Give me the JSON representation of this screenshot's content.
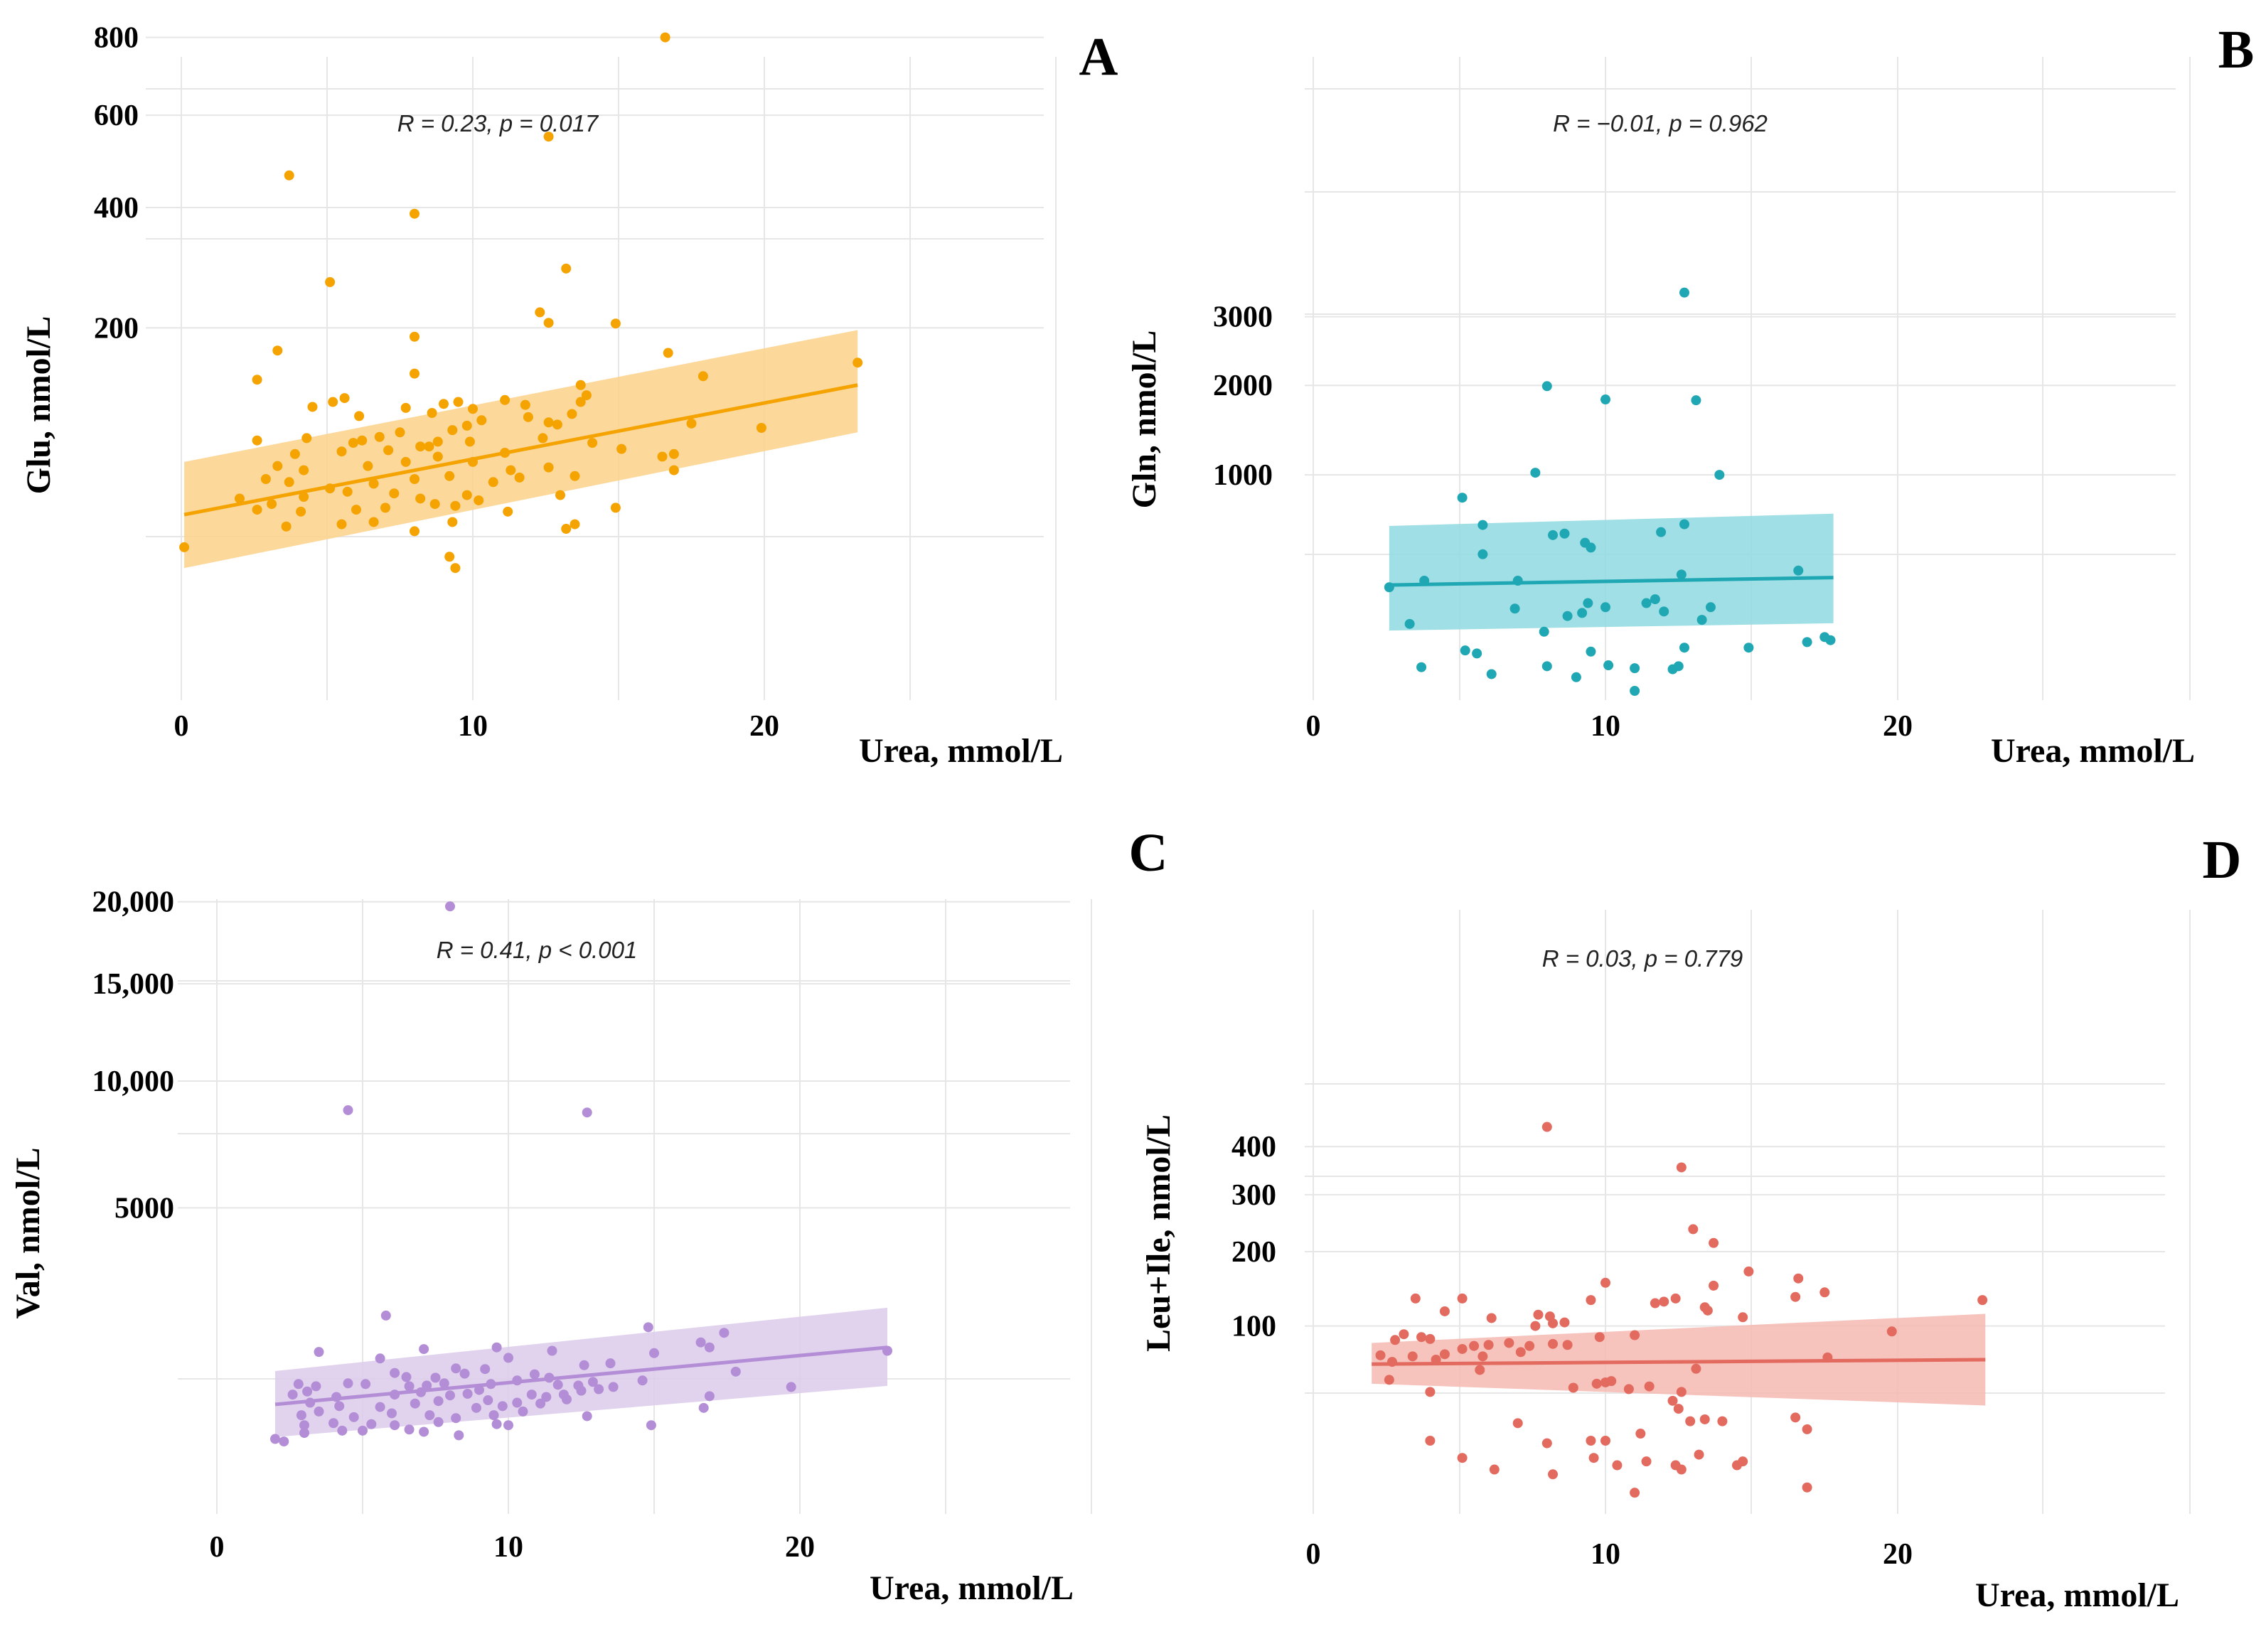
{
  "chart_data": [
    {
      "type": "scatter",
      "panel": "A",
      "xlabel": "Urea, mmol/L",
      "ylabel": "Glu, nmol/L",
      "xlim": [
        0,
        30
      ],
      "xticks": [
        0,
        10,
        20
      ],
      "yscale": "sqrt",
      "yticks": [
        200,
        400,
        600,
        800
      ],
      "ytick_labels": [
        "200",
        "400",
        "600",
        "800"
      ],
      "annotation": {
        "r": "R = 0.23, ",
        "p": "p = 0.017"
      },
      "color": "#f5a300",
      "band_color": "#fbd189",
      "fit": {
        "x0": 0.1,
        "y0": 25.5,
        "x1": 23.2,
        "y1": 129,
        "ci0": [
          6.0,
          58
        ],
        "ci1": [
          82,
          197
        ]
      },
      "points": [
        [
          16.6,
          800
        ],
        [
          12.6,
          550
        ],
        [
          3.7,
          465
        ],
        [
          8.0,
          388
        ],
        [
          5.1,
          268
        ],
        [
          13.2,
          290
        ],
        [
          12.3,
          222
        ],
        [
          12.6,
          207
        ],
        [
          14.9,
          206
        ],
        [
          8.0,
          188
        ],
        [
          3.3,
          170
        ],
        [
          16.7,
          167
        ],
        [
          23.2,
          155
        ],
        [
          2.6,
          135
        ],
        [
          17.9,
          139
        ],
        [
          8.0,
          142
        ],
        [
          13.7,
          129
        ],
        [
          13.9,
          118
        ],
        [
          4.5,
          106
        ],
        [
          5.2,
          111
        ],
        [
          5.6,
          115
        ],
        [
          6.1,
          97
        ],
        [
          7.7,
          105
        ],
        [
          8.6,
          100
        ],
        [
          9.0,
          109
        ],
        [
          9.5,
          111
        ],
        [
          10.0,
          104
        ],
        [
          11.1,
          113
        ],
        [
          11.8,
          108
        ],
        [
          13.4,
          99
        ],
        [
          13.7,
          111
        ],
        [
          12.6,
          91
        ],
        [
          17.5,
          90
        ],
        [
          19.9,
          86
        ],
        [
          4.3,
          77
        ],
        [
          5.9,
          73
        ],
        [
          6.2,
          75
        ],
        [
          6.8,
          78
        ],
        [
          7.5,
          82
        ],
        [
          8.2,
          70
        ],
        [
          8.8,
          74
        ],
        [
          9.3,
          84
        ],
        [
          9.8,
          88
        ],
        [
          10.3,
          93
        ],
        [
          11.9,
          96
        ],
        [
          12.9,
          89
        ],
        [
          15.1,
          68
        ],
        [
          16.9,
          64
        ],
        [
          16.5,
          62
        ],
        [
          2.6,
          75
        ],
        [
          3.9,
          64
        ],
        [
          5.5,
          66
        ],
        [
          7.1,
          67
        ],
        [
          8.5,
          70
        ],
        [
          9.9,
          74
        ],
        [
          11.1,
          65
        ],
        [
          12.4,
          77
        ],
        [
          14.1,
          73
        ],
        [
          3.3,
          55
        ],
        [
          4.2,
          52
        ],
        [
          6.4,
          55
        ],
        [
          7.7,
          58
        ],
        [
          8.8,
          62
        ],
        [
          10.0,
          58
        ],
        [
          11.3,
          52
        ],
        [
          12.6,
          54
        ],
        [
          16.9,
          52
        ],
        [
          2.9,
          46
        ],
        [
          3.7,
          44
        ],
        [
          5.1,
          40
        ],
        [
          6.6,
          43
        ],
        [
          8.0,
          46
        ],
        [
          9.2,
          48
        ],
        [
          10.7,
          44
        ],
        [
          11.6,
          47
        ],
        [
          13.5,
          48
        ],
        [
          2.0,
          34
        ],
        [
          3.1,
          31
        ],
        [
          4.2,
          35
        ],
        [
          5.7,
          38
        ],
        [
          7.3,
          37
        ],
        [
          8.2,
          34
        ],
        [
          9.8,
          36
        ],
        [
          10.2,
          33
        ],
        [
          13.0,
          36
        ],
        [
          2.6,
          28
        ],
        [
          4.1,
          27
        ],
        [
          6.0,
          28
        ],
        [
          7.0,
          29
        ],
        [
          8.7,
          31
        ],
        [
          9.4,
          30
        ],
        [
          11.2,
          27
        ],
        [
          14.9,
          29
        ],
        [
          3.6,
          20
        ],
        [
          5.5,
          21
        ],
        [
          6.6,
          22
        ],
        [
          8.0,
          18
        ],
        [
          9.3,
          22
        ],
        [
          13.2,
          19
        ],
        [
          13.5,
          21
        ],
        [
          0.1,
          12
        ],
        [
          9.2,
          9
        ],
        [
          9.4,
          6
        ]
      ]
    },
    {
      "type": "scatter",
      "panel": "B",
      "xlabel": "Urea, mmol/L",
      "ylabel": "Gln, nmol/L",
      "xlim": [
        0,
        30
      ],
      "xticks": [
        0,
        10,
        20
      ],
      "yscale": "sqrt",
      "yticks": [
        1000,
        2000,
        3000
      ],
      "ytick_labels": [
        "1000",
        "2000",
        "3000"
      ],
      "annotation": {
        "r": "R = −0.01, ",
        "p": "p = 0.962"
      },
      "color": "#1fa8b4",
      "band_color": "#8ed9e0",
      "fit": {
        "x0": 2.6,
        "y0": 240,
        "x1": 17.8,
        "y1": 275,
        "ci0": [
          78,
          583
        ],
        "ci1": [
          98,
          673
        ]
      },
      "points": [
        [
          12.7,
          3400
        ],
        [
          8.0,
          1990
        ],
        [
          10.0,
          1820
        ],
        [
          13.1,
          1810
        ],
        [
          7.6,
          1020
        ],
        [
          13.9,
          1000
        ],
        [
          5.1,
          800
        ],
        [
          5.8,
          590
        ],
        [
          8.2,
          520
        ],
        [
          8.6,
          530
        ],
        [
          11.9,
          540
        ],
        [
          12.7,
          595
        ],
        [
          9.3,
          470
        ],
        [
          9.5,
          440
        ],
        [
          5.8,
          400
        ],
        [
          7.0,
          260
        ],
        [
          12.6,
          290
        ],
        [
          16.6,
          310
        ],
        [
          2.6,
          230
        ],
        [
          3.8,
          260
        ],
        [
          11.4,
          165
        ],
        [
          11.7,
          180
        ],
        [
          12.0,
          135
        ],
        [
          9.4,
          165
        ],
        [
          10.0,
          150
        ],
        [
          6.9,
          145
        ],
        [
          8.7,
          120
        ],
        [
          13.3,
          108
        ],
        [
          13.6,
          150
        ],
        [
          3.3,
          96
        ],
        [
          9.2,
          130
        ],
        [
          7.9,
          75
        ],
        [
          17.5,
          62
        ],
        [
          17.7,
          55
        ],
        [
          5.2,
          35
        ],
        [
          5.6,
          30
        ],
        [
          9.5,
          33
        ],
        [
          12.7,
          40
        ],
        [
          14.9,
          40
        ],
        [
          16.9,
          51
        ],
        [
          3.7,
          12
        ],
        [
          6.1,
          6
        ],
        [
          8.0,
          13
        ],
        [
          9.0,
          4
        ],
        [
          10.1,
          14
        ],
        [
          11.0,
          11
        ],
        [
          12.3,
          10
        ],
        [
          12.5,
          13
        ],
        [
          11.0,
          0
        ]
      ]
    },
    {
      "type": "scatter",
      "panel": "C",
      "xlabel": "Urea, mmol/L",
      "ylabel": "Val, nmol/L",
      "xlim": [
        0,
        30
      ],
      "xticks": [
        0,
        10,
        20
      ],
      "yscale": "sqrt",
      "yticks": [
        5000,
        10000,
        15000,
        20000
      ],
      "ytick_labels": [
        "5000",
        "10,000",
        "15,000",
        "20,000"
      ],
      "annotation": {
        "r": "R = 0.41, ",
        "p": "p < 0.001"
      },
      "color": "#b38ed6",
      "band_color": "#dccaea",
      "fit": {
        "x0": 2.0,
        "y0": 640,
        "x1": 23.0,
        "y1": 1480,
        "ci0": [
          315,
          1090
        ],
        "ci1": [
          875,
          2270
        ]
      },
      "points": [
        [
          8.0,
          19700
        ],
        [
          4.5,
          8700
        ],
        [
          12.7,
          8600
        ],
        [
          5.8,
          2100
        ],
        [
          14.8,
          1860
        ],
        [
          17.4,
          1750
        ],
        [
          16.6,
          1570
        ],
        [
          16.9,
          1480
        ],
        [
          9.6,
          1480
        ],
        [
          23.0,
          1420
        ],
        [
          3.5,
          1400
        ],
        [
          7.1,
          1450
        ],
        [
          11.5,
          1420
        ],
        [
          15.0,
          1380
        ],
        [
          5.6,
          1290
        ],
        [
          10.0,
          1300
        ],
        [
          8.2,
          1130
        ],
        [
          9.2,
          1120
        ],
        [
          12.6,
          1180
        ],
        [
          13.5,
          1210
        ],
        [
          17.8,
          1080
        ],
        [
          6.1,
          1060
        ],
        [
          6.5,
          1000
        ],
        [
          7.5,
          990
        ],
        [
          8.5,
          1050
        ],
        [
          10.9,
          1040
        ],
        [
          11.4,
          990
        ],
        [
          12.9,
          930
        ],
        [
          14.6,
          950
        ],
        [
          2.8,
          900
        ],
        [
          3.4,
          870
        ],
        [
          4.5,
          910
        ],
        [
          5.1,
          900
        ],
        [
          6.6,
          870
        ],
        [
          7.2,
          880
        ],
        [
          7.8,
          910
        ],
        [
          9.4,
          900
        ],
        [
          10.3,
          950
        ],
        [
          11.7,
          890
        ],
        [
          12.4,
          880
        ],
        [
          13.6,
          860
        ],
        [
          19.7,
          860
        ],
        [
          2.6,
          760
        ],
        [
          3.1,
          800
        ],
        [
          4.1,
          730
        ],
        [
          6.1,
          760
        ],
        [
          7.0,
          790
        ],
        [
          8.0,
          750
        ],
        [
          8.6,
          770
        ],
        [
          9.0,
          820
        ],
        [
          10.8,
          760
        ],
        [
          11.3,
          730
        ],
        [
          11.9,
          760
        ],
        [
          12.5,
          810
        ],
        [
          13.1,
          830
        ],
        [
          16.9,
          740
        ],
        [
          3.2,
          660
        ],
        [
          4.2,
          620
        ],
        [
          5.6,
          610
        ],
        [
          6.8,
          650
        ],
        [
          7.6,
          680
        ],
        [
          8.9,
          600
        ],
        [
          9.3,
          690
        ],
        [
          9.8,
          620
        ],
        [
          10.3,
          660
        ],
        [
          11.1,
          650
        ],
        [
          12.0,
          700
        ],
        [
          16.7,
          600
        ],
        [
          2.9,
          520
        ],
        [
          3.5,
          560
        ],
        [
          4.7,
          500
        ],
        [
          6.0,
          540
        ],
        [
          7.3,
          520
        ],
        [
          8.2,
          490
        ],
        [
          9.5,
          520
        ],
        [
          10.5,
          560
        ],
        [
          12.7,
          510
        ],
        [
          3.0,
          420
        ],
        [
          4.0,
          440
        ],
        [
          5.3,
          430
        ],
        [
          6.1,
          420
        ],
        [
          7.6,
          450
        ],
        [
          9.6,
          430
        ],
        [
          10.0,
          420
        ],
        [
          14.9,
          420
        ],
        [
          2.0,
          300
        ],
        [
          2.3,
          280
        ],
        [
          3.0,
          350
        ],
        [
          4.3,
          370
        ],
        [
          5.0,
          370
        ],
        [
          6.6,
          380
        ],
        [
          7.1,
          360
        ],
        [
          8.3,
          330
        ]
      ]
    },
    {
      "type": "scatter",
      "panel": "D",
      "xlabel": "Urea, mmol/L",
      "ylabel": "Leu+Ile, nmol/L",
      "xlim": [
        0,
        30
      ],
      "xticks": [
        0,
        10,
        20
      ],
      "yscale": "sqrt",
      "yticks": [
        100,
        200,
        300,
        400
      ],
      "ytick_labels": [
        "100",
        "200",
        "300",
        "400"
      ],
      "annotation": {
        "r": "R = 0.03, ",
        "p": "p = 0.779"
      },
      "color": "#e36a5f",
      "band_color": "#f5b8b2",
      "fit": {
        "x0": 2.0,
        "y0": 62,
        "x1": 23.0,
        "y1": 66,
        "ci0": [
          46,
          82
        ],
        "ci1": [
          31,
          114
        ]
      },
      "points": [
        [
          8.0,
          445
        ],
        [
          12.6,
          355
        ],
        [
          13.0,
          237
        ],
        [
          13.7,
          214
        ],
        [
          14.9,
          170
        ],
        [
          16.6,
          160
        ],
        [
          10.0,
          154
        ],
        [
          17.5,
          141
        ],
        [
          22.9,
          131
        ],
        [
          13.7,
          150
        ],
        [
          16.5,
          135
        ],
        [
          12.4,
          133
        ],
        [
          3.5,
          133
        ],
        [
          5.1,
          133
        ],
        [
          11.7,
          127
        ],
        [
          12.0,
          129
        ],
        [
          9.5,
          131
        ],
        [
          13.5,
          118
        ],
        [
          4.5,
          117
        ],
        [
          13.4,
          122
        ],
        [
          14.7,
          110
        ],
        [
          7.7,
          113
        ],
        [
          8.1,
          111
        ],
        [
          6.1,
          109
        ],
        [
          8.2,
          103
        ],
        [
          8.6,
          104
        ],
        [
          3.1,
          91
        ],
        [
          7.6,
          100
        ],
        [
          19.8,
          94
        ],
        [
          2.8,
          85
        ],
        [
          3.7,
          88
        ],
        [
          4.0,
          86
        ],
        [
          6.7,
          82
        ],
        [
          8.2,
          81
        ],
        [
          8.7,
          80
        ],
        [
          9.8,
          88
        ],
        [
          11.0,
          90
        ],
        [
          5.5,
          79
        ],
        [
          6.0,
          80
        ],
        [
          7.4,
          79
        ],
        [
          2.3,
          70
        ],
        [
          3.4,
          69
        ],
        [
          4.5,
          71
        ],
        [
          5.1,
          76
        ],
        [
          5.8,
          69
        ],
        [
          7.1,
          73
        ],
        [
          2.7,
          64
        ],
        [
          4.2,
          66
        ],
        [
          5.7,
          57
        ],
        [
          13.1,
          58
        ],
        [
          17.6,
          68
        ],
        [
          10.0,
          47
        ],
        [
          2.6,
          49
        ],
        [
          8.9,
          43
        ],
        [
          9.7,
          46
        ],
        [
          10.2,
          48
        ],
        [
          11.5,
          44
        ],
        [
          4.0,
          40
        ],
        [
          12.6,
          40
        ],
        [
          10.8,
          42
        ],
        [
          12.3,
          34
        ],
        [
          12.5,
          29
        ],
        [
          12.9,
          22
        ],
        [
          13.4,
          23
        ],
        [
          14.0,
          22
        ],
        [
          16.5,
          24
        ],
        [
          16.9,
          18
        ],
        [
          7.0,
          21
        ],
        [
          11.2,
          16
        ],
        [
          8.0,
          12
        ],
        [
          9.5,
          13
        ],
        [
          10.0,
          13
        ],
        [
          4.0,
          13
        ],
        [
          5.1,
          7
        ],
        [
          6.2,
          4
        ],
        [
          8.2,
          3
        ],
        [
          9.6,
          7
        ],
        [
          10.4,
          5
        ],
        [
          11.4,
          6
        ],
        [
          12.4,
          5
        ],
        [
          12.6,
          4
        ],
        [
          13.2,
          8
        ],
        [
          14.5,
          5
        ],
        [
          14.7,
          6
        ],
        [
          16.9,
          1
        ],
        [
          11.0,
          0.5
        ]
      ]
    }
  ]
}
